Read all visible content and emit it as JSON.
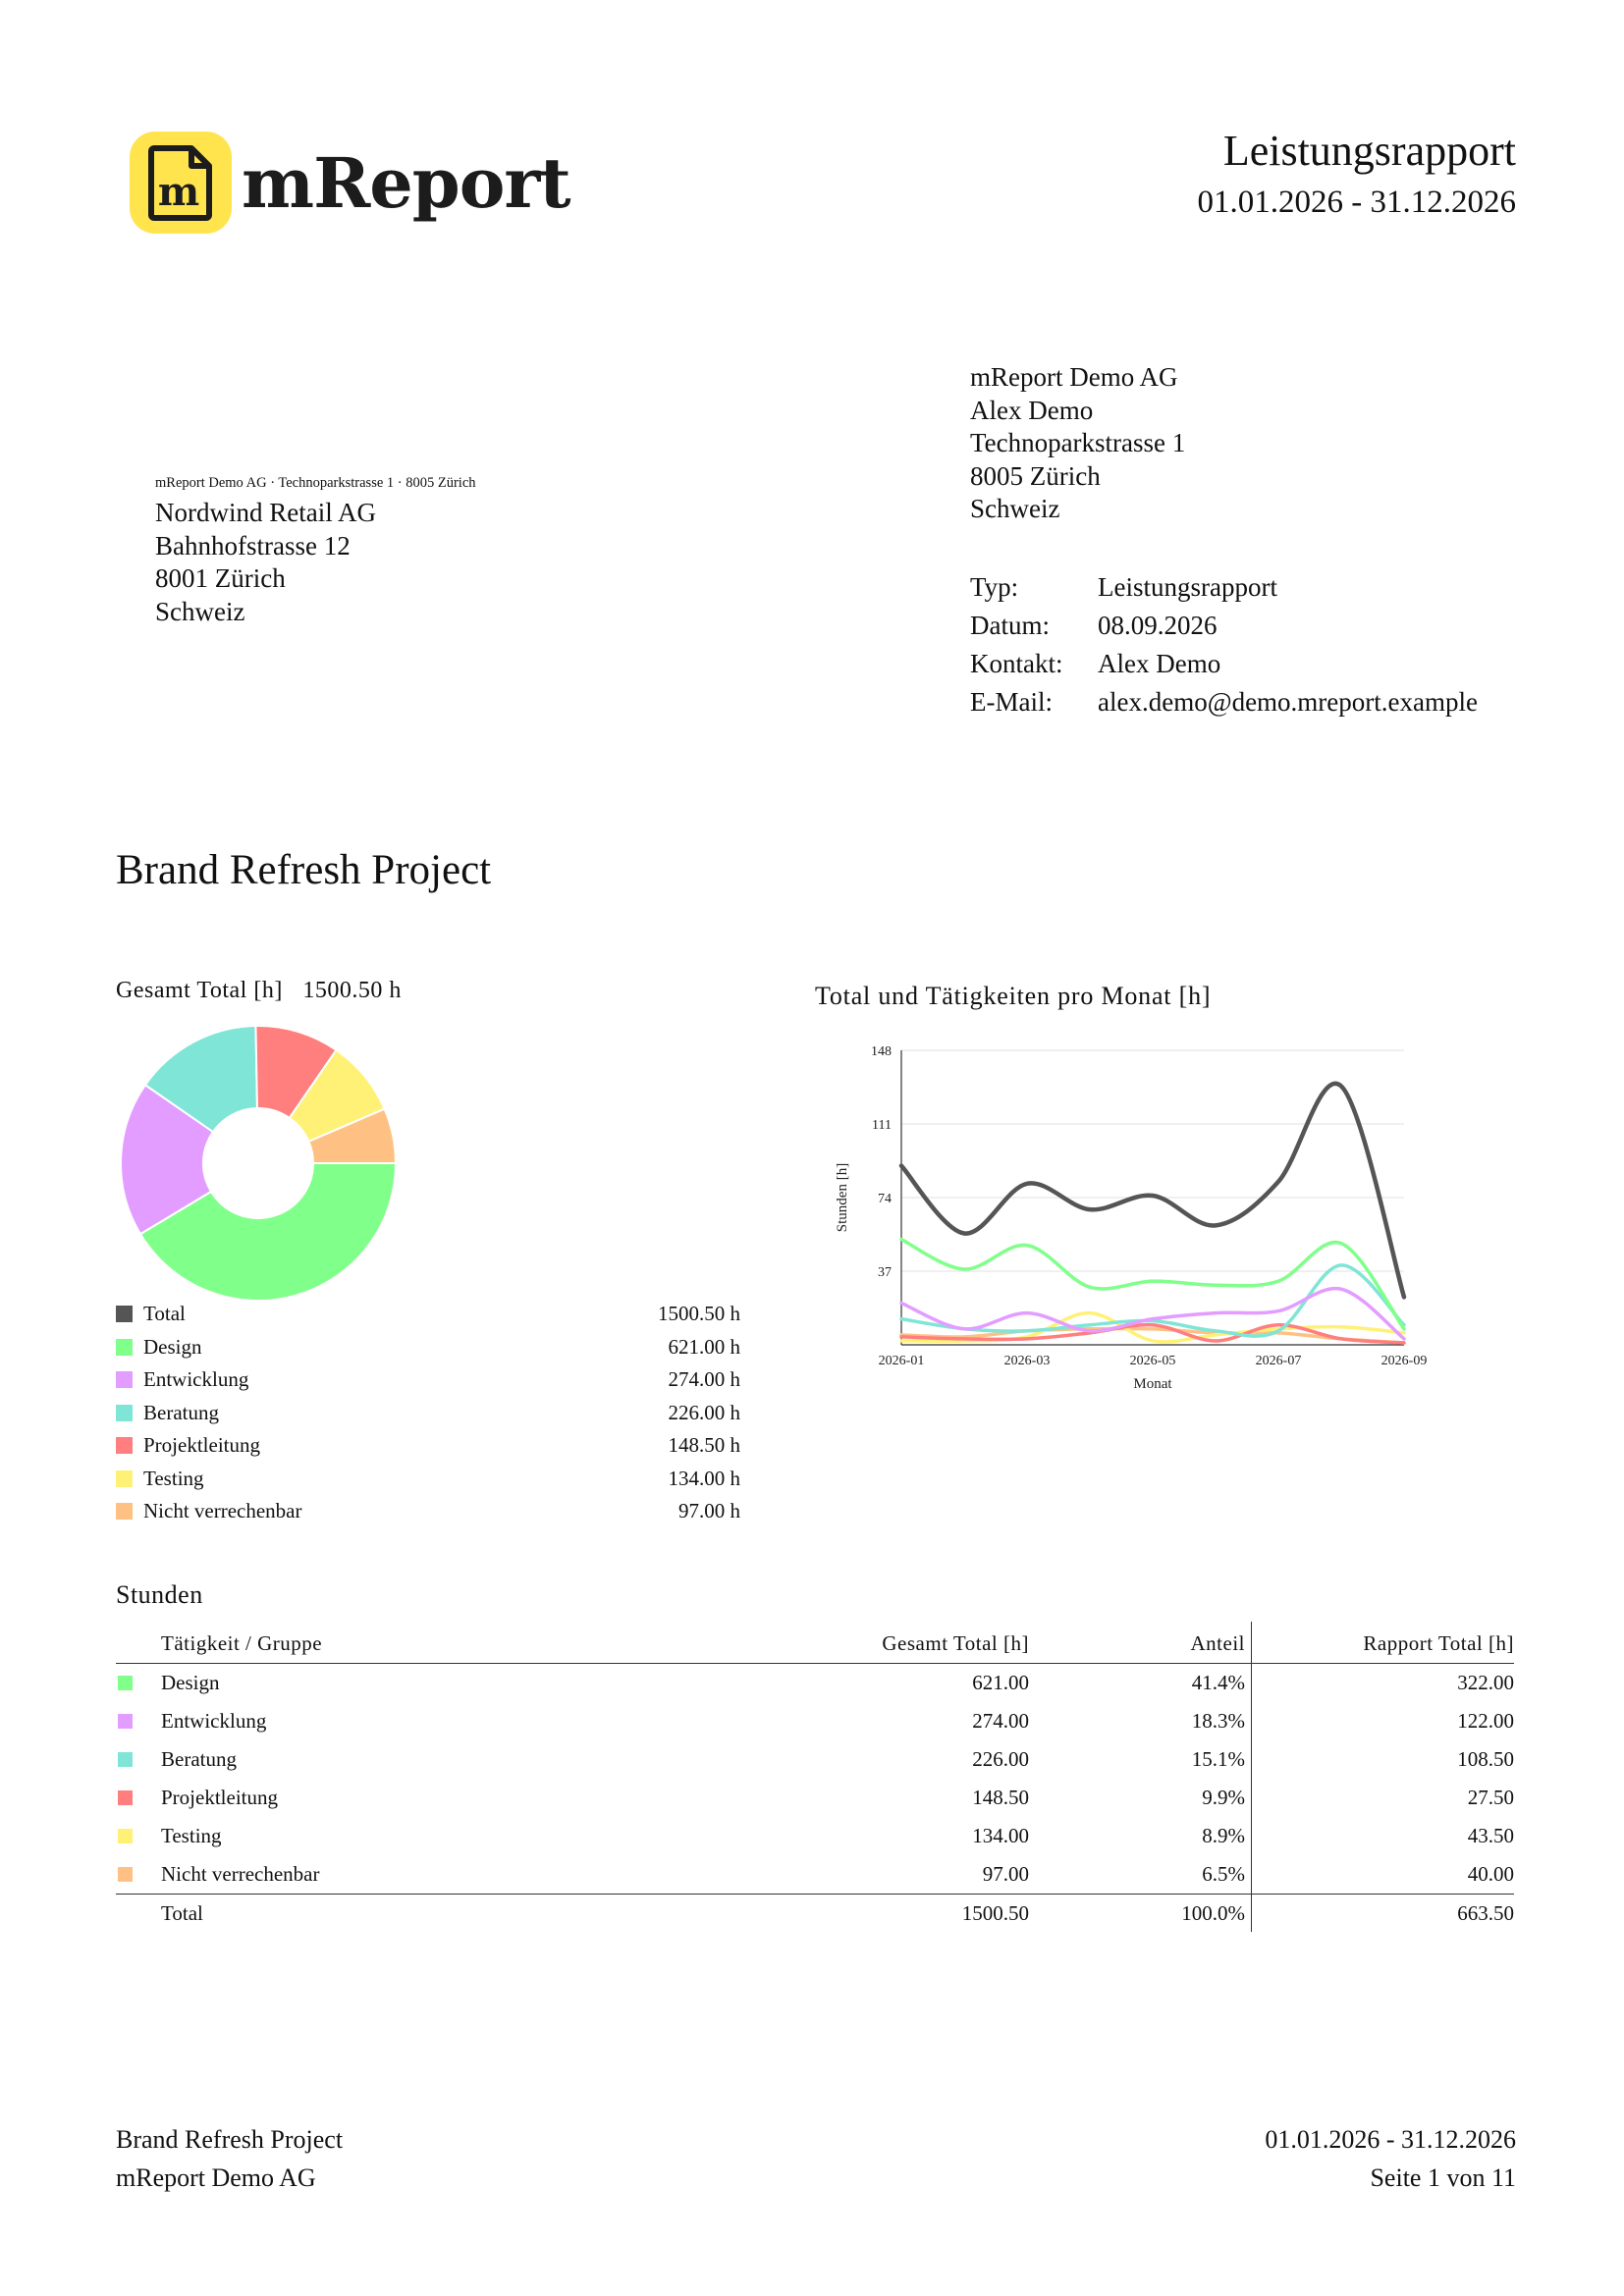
{
  "brand": {
    "name": "mReport",
    "logo_icon": "document-m-icon",
    "logo_color": "#ffe44d"
  },
  "header": {
    "title": "Leistungsrapport",
    "period": "01.01.2026 - 31.12.2026"
  },
  "sender": {
    "lines": [
      "mReport Demo AG",
      "Alex Demo",
      "Technoparkstrasse 1",
      "8005 Zürich",
      "Schweiz"
    ]
  },
  "return_address": "mReport Demo AG · Technoparkstrasse 1 · 8005 Zürich",
  "recipient": {
    "lines": [
      "Nordwind Retail AG",
      "Bahnhofstrasse 12",
      "8001 Zürich",
      "Schweiz"
    ]
  },
  "meta": [
    {
      "key": "Typ:",
      "value": "Leistungsrapport"
    },
    {
      "key": "Datum:",
      "value": "08.09.2026"
    },
    {
      "key": "Kontakt:",
      "value": "Alex Demo"
    },
    {
      "key": "E-Mail:",
      "value": "alex.demo@demo.mreport.example"
    }
  ],
  "project_title": "Brand Refresh Project",
  "pie": {
    "heading": "Gesamt Total [h]",
    "total_value": "1500.50 h",
    "legend": [
      {
        "label": "Total",
        "value": "1500.50 h",
        "color": "#555555"
      },
      {
        "label": "Design",
        "value": "621.00 h",
        "color": "#80ff8a"
      },
      {
        "label": "Entwicklung",
        "value": "274.00 h",
        "color": "#e39cff"
      },
      {
        "label": "Beratung",
        "value": "226.00 h",
        "color": "#7fe5d6"
      },
      {
        "label": "Projektleitung",
        "value": "148.50 h",
        "color": "#ff7f7f"
      },
      {
        "label": "Testing",
        "value": "134.00 h",
        "color": "#fff176"
      },
      {
        "label": "Nicht verrechenbar",
        "value": "97.00 h",
        "color": "#ffc183"
      }
    ]
  },
  "chart_data": [
    {
      "type": "pie",
      "variant": "donut",
      "categories": [
        "Design",
        "Entwicklung",
        "Beratung",
        "Projektleitung",
        "Testing",
        "Nicht verrechenbar"
      ],
      "values": [
        621.0,
        274.0,
        226.0,
        148.5,
        134.0,
        97.0
      ],
      "colors": [
        "#80ff8a",
        "#e39cff",
        "#7fe5d6",
        "#ff7f7f",
        "#fff176",
        "#ffc183"
      ]
    },
    {
      "type": "line",
      "title": "Total und Tätigkeiten pro Monat [h]",
      "xlabel": "Monat",
      "ylabel": "Stunden [h]",
      "x": [
        "2026-01",
        "2026-02",
        "2026-03",
        "2026-04",
        "2026-05",
        "2026-06",
        "2026-07",
        "2026-08",
        "2026-09"
      ],
      "x_ticks": [
        "2026-01",
        "2026-03",
        "2026-05",
        "2026-07",
        "2026-09"
      ],
      "y_ticks": [
        37,
        74,
        111,
        148
      ],
      "ylim": [
        0,
        148
      ],
      "grid": true,
      "smooth": true,
      "series": [
        {
          "name": "Total",
          "color": "#555555",
          "values": [
            90,
            56,
            81,
            68,
            75,
            60,
            82,
            130,
            24
          ]
        },
        {
          "name": "Design",
          "color": "#80ff8a",
          "values": [
            53,
            38,
            50,
            29,
            32,
            30,
            32,
            51,
            8
          ]
        },
        {
          "name": "Entwicklung",
          "color": "#e39cff",
          "values": [
            21,
            8,
            16,
            7,
            13,
            16,
            17,
            28,
            3
          ]
        },
        {
          "name": "Beratung",
          "color": "#7fe5d6",
          "values": [
            13,
            8,
            7,
            10,
            12,
            7,
            7,
            40,
            10
          ]
        },
        {
          "name": "Projektleitung",
          "color": "#ff7f7f",
          "values": [
            4,
            3,
            3,
            6,
            10,
            2,
            10,
            3,
            1
          ]
        },
        {
          "name": "Testing",
          "color": "#fff176",
          "values": [
            2,
            2,
            4,
            16,
            2,
            5,
            8,
            9,
            6
          ]
        },
        {
          "name": "Nicht verrechenbar",
          "color": "#ffc183",
          "values": [
            5,
            4,
            7,
            8,
            8,
            6,
            6,
            3,
            1
          ]
        }
      ]
    }
  ],
  "line_chart_heading": "Total und Tätigkeiten pro Monat [h]",
  "hours": {
    "heading": "Stunden",
    "columns": [
      "Tätigkeit / Gruppe",
      "Gesamt Total [h]",
      "Anteil",
      "Rapport Total [h]"
    ],
    "rows": [
      {
        "label": "Design",
        "total": "621.00",
        "share": "41.4%",
        "report": "322.00",
        "color": "#80ff8a"
      },
      {
        "label": "Entwicklung",
        "total": "274.00",
        "share": "18.3%",
        "report": "122.00",
        "color": "#e39cff"
      },
      {
        "label": "Beratung",
        "total": "226.00",
        "share": "15.1%",
        "report": "108.50",
        "color": "#7fe5d6"
      },
      {
        "label": "Projektleitung",
        "total": "148.50",
        "share": "9.9%",
        "report": "27.50",
        "color": "#ff7f7f"
      },
      {
        "label": "Testing",
        "total": "134.00",
        "share": "8.9%",
        "report": "43.50",
        "color": "#fff176"
      },
      {
        "label": "Nicht verrechenbar",
        "total": "97.00",
        "share": "6.5%",
        "report": "40.00",
        "color": "#ffc183"
      }
    ],
    "total": {
      "label": "Total",
      "total": "1500.50",
      "share": "100.0%",
      "report": "663.50"
    }
  },
  "footer": {
    "left": [
      "Brand Refresh Project",
      "mReport Demo AG"
    ],
    "right": [
      "01.01.2026 - 31.12.2026",
      "Seite 1 von 11"
    ]
  }
}
